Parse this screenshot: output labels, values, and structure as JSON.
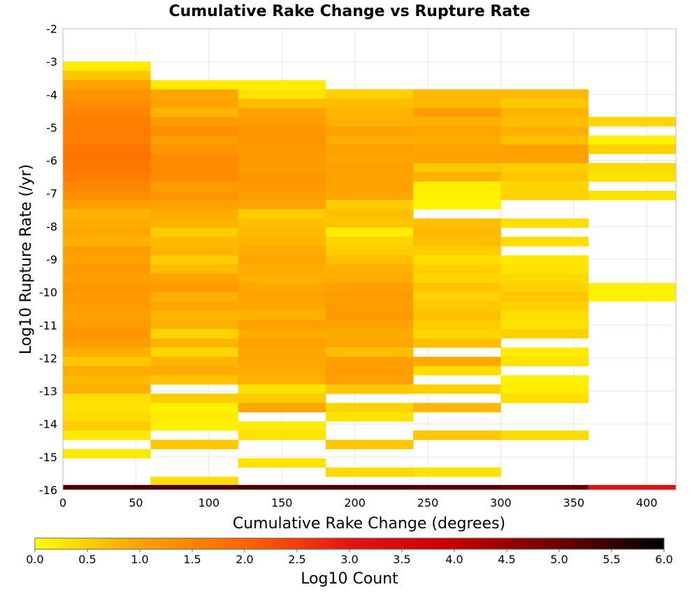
{
  "chart_data": {
    "type": "heatmap",
    "title": "Cumulative Rake Change vs Rupture Rate",
    "xlabel": "Cumulative Rake Change (degrees)",
    "ylabel": "Log10 Rupture Rate (/yr)",
    "xlim": [
      0,
      420
    ],
    "ylim": [
      -16,
      -2
    ],
    "x_ticks": [
      "0",
      "50",
      "100",
      "150",
      "200",
      "250",
      "300",
      "350",
      "400"
    ],
    "y_ticks": [
      "-2",
      "-3",
      "-4",
      "-5",
      "-6",
      "-7",
      "-8",
      "-9",
      "-10",
      "-11",
      "-12",
      "-13",
      "-14",
      "-15",
      "-16"
    ],
    "x_bin_width": 60,
    "y_bin_height": 0.28,
    "grid": true,
    "colorbar": {
      "label": "Log10 Count",
      "range": [
        0,
        6
      ],
      "ticks": [
        "0.0",
        "0.5",
        "1.0",
        "1.5",
        "2.0",
        "2.5",
        "3.0",
        "3.5",
        "4.0",
        "4.5",
        "5.0",
        "5.5",
        "6.0"
      ],
      "colors": [
        "#ffff00",
        "#ffa200",
        "#ff6400",
        "#e61414",
        "#c80000",
        "#6e0000",
        "#000000"
      ],
      "placement": "bottom"
    },
    "columns": [
      {
        "x": 0,
        "cells": [
          [
            -3.0,
            0.2
          ],
          [
            -3.28,
            0.6
          ],
          [
            -3.56,
            1.0
          ],
          [
            -3.84,
            1.25
          ],
          [
            -4.12,
            1.3
          ],
          [
            -4.4,
            1.45
          ],
          [
            -4.68,
            1.55
          ],
          [
            -4.96,
            1.6
          ],
          [
            -5.24,
            1.6
          ],
          [
            -5.52,
            1.7
          ],
          [
            -5.8,
            1.75
          ],
          [
            -6.08,
            1.7
          ],
          [
            -6.36,
            1.6
          ],
          [
            -6.64,
            1.45
          ],
          [
            -6.92,
            1.3
          ],
          [
            -7.2,
            1.1
          ],
          [
            -7.48,
            0.8
          ],
          [
            -7.76,
            0.9
          ],
          [
            -8.04,
            0.95
          ],
          [
            -8.32,
            0.85
          ],
          [
            -8.6,
            1.1
          ],
          [
            -8.88,
            1.0
          ],
          [
            -9.16,
            1.15
          ],
          [
            -9.44,
            1.05
          ],
          [
            -9.72,
            1.2
          ],
          [
            -10.0,
            1.15
          ],
          [
            -10.28,
            1.1
          ],
          [
            -10.56,
            1.05
          ],
          [
            -10.84,
            1.1
          ],
          [
            -11.12,
            1.2
          ],
          [
            -11.4,
            1.1
          ],
          [
            -11.68,
            0.85
          ],
          [
            -11.96,
            0.6
          ],
          [
            -12.24,
            0.9
          ],
          [
            -12.52,
            0.75
          ],
          [
            -12.8,
            0.85
          ],
          [
            -13.08,
            0.35
          ],
          [
            -13.36,
            0.3
          ],
          [
            -13.64,
            0.4
          ],
          [
            -13.92,
            0.55
          ],
          [
            -14.2,
            0.25
          ],
          [
            -14.76,
            0.25
          ]
        ]
      },
      {
        "x": 60,
        "cells": [
          [
            -3.56,
            0.2
          ],
          [
            -3.84,
            0.95
          ],
          [
            -4.12,
            1.0
          ],
          [
            -4.4,
            0.8
          ],
          [
            -4.68,
            1.15
          ],
          [
            -4.96,
            1.3
          ],
          [
            -5.24,
            1.1
          ],
          [
            -5.52,
            1.2
          ],
          [
            -5.8,
            1.35
          ],
          [
            -6.08,
            1.35
          ],
          [
            -6.36,
            1.35
          ],
          [
            -6.64,
            1.1
          ],
          [
            -6.92,
            1.25
          ],
          [
            -7.2,
            1.05
          ],
          [
            -7.48,
            0.9
          ],
          [
            -7.76,
            0.8
          ],
          [
            -8.04,
            0.55
          ],
          [
            -8.32,
            0.75
          ],
          [
            -8.6,
            0.8
          ],
          [
            -8.88,
            0.55
          ],
          [
            -9.16,
            0.75
          ],
          [
            -9.44,
            1.0
          ],
          [
            -9.72,
            1.1
          ],
          [
            -10.0,
            0.85
          ],
          [
            -10.28,
            0.95
          ],
          [
            -10.56,
            0.8
          ],
          [
            -10.84,
            0.85
          ],
          [
            -11.12,
            0.45
          ],
          [
            -11.4,
            0.8
          ],
          [
            -11.68,
            0.45
          ],
          [
            -11.96,
            0.8
          ],
          [
            -12.24,
            0.9
          ],
          [
            -12.52,
            0.65
          ],
          [
            -13.08,
            0.55
          ],
          [
            -13.36,
            0.15
          ],
          [
            -13.64,
            0.2
          ],
          [
            -13.92,
            0.15
          ],
          [
            -14.48,
            0.6
          ],
          [
            -15.6,
            0.35
          ]
        ]
      },
      {
        "x": 120,
        "cells": [
          [
            -3.56,
            0.2
          ],
          [
            -3.84,
            0.3
          ],
          [
            -4.12,
            0.7
          ],
          [
            -4.4,
            1.0
          ],
          [
            -4.68,
            1.1
          ],
          [
            -4.96,
            1.2
          ],
          [
            -5.24,
            1.2
          ],
          [
            -5.52,
            1.15
          ],
          [
            -5.8,
            1.15
          ],
          [
            -6.08,
            1.1
          ],
          [
            -6.36,
            1.2
          ],
          [
            -6.64,
            1.15
          ],
          [
            -6.92,
            1.1
          ],
          [
            -7.2,
            1.0
          ],
          [
            -7.48,
            0.55
          ],
          [
            -7.76,
            0.7
          ],
          [
            -8.04,
            0.75
          ],
          [
            -8.32,
            0.8
          ],
          [
            -8.6,
            0.9
          ],
          [
            -8.88,
            0.95
          ],
          [
            -9.16,
            0.9
          ],
          [
            -9.44,
            0.85
          ],
          [
            -9.72,
            0.95
          ],
          [
            -10.0,
            1.0
          ],
          [
            -10.28,
            0.95
          ],
          [
            -10.56,
            0.85
          ],
          [
            -10.84,
            1.05
          ],
          [
            -11.12,
            0.9
          ],
          [
            -11.4,
            1.0
          ],
          [
            -11.68,
            0.95
          ],
          [
            -11.96,
            0.95
          ],
          [
            -12.24,
            0.9
          ],
          [
            -12.52,
            0.85
          ],
          [
            -12.8,
            0.3
          ],
          [
            -13.08,
            0.55
          ],
          [
            -13.36,
            0.95
          ],
          [
            -13.92,
            0.2
          ],
          [
            -14.2,
            0.3
          ],
          [
            -15.04,
            0.3
          ]
        ]
      },
      {
        "x": 180,
        "cells": [
          [
            -3.84,
            0.5
          ],
          [
            -4.12,
            0.7
          ],
          [
            -4.4,
            0.8
          ],
          [
            -4.68,
            0.85
          ],
          [
            -4.96,
            1.0
          ],
          [
            -5.24,
            0.9
          ],
          [
            -5.52,
            1.05
          ],
          [
            -5.8,
            0.95
          ],
          [
            -6.08,
            1.05
          ],
          [
            -6.36,
            1.0
          ],
          [
            -6.64,
            1.0
          ],
          [
            -6.92,
            0.95
          ],
          [
            -7.2,
            0.55
          ],
          [
            -7.48,
            0.7
          ],
          [
            -7.76,
            0.65
          ],
          [
            -8.04,
            0.2
          ],
          [
            -8.32,
            0.45
          ],
          [
            -8.6,
            0.55
          ],
          [
            -8.88,
            0.7
          ],
          [
            -9.16,
            0.85
          ],
          [
            -9.44,
            0.9
          ],
          [
            -9.72,
            1.05
          ],
          [
            -10.0,
            1.1
          ],
          [
            -10.28,
            1.1
          ],
          [
            -10.56,
            1.15
          ],
          [
            -10.84,
            1.0
          ],
          [
            -11.12,
            0.9
          ],
          [
            -11.4,
            0.95
          ],
          [
            -11.68,
            0.7
          ],
          [
            -11.96,
            1.05
          ],
          [
            -12.24,
            1.1
          ],
          [
            -12.52,
            1.05
          ],
          [
            -12.8,
            0.6
          ],
          [
            -13.36,
            0.45
          ],
          [
            -13.64,
            0.3
          ],
          [
            -14.48,
            0.6
          ],
          [
            -15.32,
            0.4
          ]
        ]
      },
      {
        "x": 240,
        "cells": [
          [
            -3.84,
            0.75
          ],
          [
            -4.12,
            0.75
          ],
          [
            -4.4,
            1.1
          ],
          [
            -4.68,
            0.85
          ],
          [
            -4.96,
            0.95
          ],
          [
            -5.24,
            0.9
          ],
          [
            -5.52,
            0.95
          ],
          [
            -5.8,
            1.0
          ],
          [
            -6.08,
            0.6
          ],
          [
            -6.36,
            0.85
          ],
          [
            -6.64,
            0.2
          ],
          [
            -6.92,
            0.15
          ],
          [
            -7.2,
            0.1
          ],
          [
            -7.76,
            0.7
          ],
          [
            -8.04,
            0.75
          ],
          [
            -8.32,
            0.7
          ],
          [
            -8.6,
            0.55
          ],
          [
            -8.88,
            0.35
          ],
          [
            -9.16,
            0.55
          ],
          [
            -9.44,
            0.45
          ],
          [
            -9.72,
            0.65
          ],
          [
            -10.0,
            0.5
          ],
          [
            -10.28,
            0.6
          ],
          [
            -10.56,
            0.7
          ],
          [
            -10.84,
            0.55
          ],
          [
            -11.12,
            0.45
          ],
          [
            -11.4,
            0.7
          ],
          [
            -11.96,
            0.95
          ],
          [
            -12.24,
            0.35
          ],
          [
            -12.8,
            0.5
          ],
          [
            -13.36,
            0.75
          ],
          [
            -14.2,
            0.6
          ],
          [
            -15.32,
            0.3
          ]
        ]
      },
      {
        "x": 300,
        "cells": [
          [
            -3.84,
            0.75
          ],
          [
            -4.12,
            0.6
          ],
          [
            -4.4,
            0.8
          ],
          [
            -4.68,
            0.7
          ],
          [
            -4.96,
            0.85
          ],
          [
            -5.24,
            0.7
          ],
          [
            -5.52,
            1.05
          ],
          [
            -5.8,
            1.0
          ],
          [
            -6.08,
            0.55
          ],
          [
            -6.36,
            0.6
          ],
          [
            -6.64,
            0.45
          ],
          [
            -6.92,
            0.5
          ],
          [
            -7.76,
            0.35
          ],
          [
            -8.32,
            0.35
          ],
          [
            -8.88,
            0.25
          ],
          [
            -9.16,
            0.3
          ],
          [
            -9.44,
            0.4
          ],
          [
            -9.72,
            0.5
          ],
          [
            -10.0,
            0.6
          ],
          [
            -10.28,
            0.5
          ],
          [
            -10.56,
            0.35
          ],
          [
            -10.84,
            0.3
          ],
          [
            -11.12,
            0.5
          ],
          [
            -11.68,
            0.2
          ],
          [
            -11.96,
            0.3
          ],
          [
            -12.52,
            0.15
          ],
          [
            -12.8,
            0.2
          ],
          [
            -13.08,
            0.35
          ],
          [
            -14.2,
            0.4
          ]
        ]
      },
      {
        "x": 360,
        "cells": [
          [
            -4.68,
            0.45
          ],
          [
            -5.24,
            0.15
          ],
          [
            -5.52,
            0.5
          ],
          [
            -6.08,
            0.4
          ],
          [
            -6.36,
            0.3
          ],
          [
            -6.92,
            0.3
          ],
          [
            -9.72,
            0.15
          ],
          [
            -10.0,
            0.15
          ]
        ]
      }
    ],
    "bottom_row": {
      "y": -16,
      "height": 0.15,
      "cells": [
        [
          0,
          5.3
        ],
        [
          60,
          5.3
        ],
        [
          120,
          5.3
        ],
        [
          180,
          5.3
        ],
        [
          240,
          5.2
        ],
        [
          300,
          5.1
        ],
        [
          360,
          3.2
        ]
      ]
    }
  }
}
